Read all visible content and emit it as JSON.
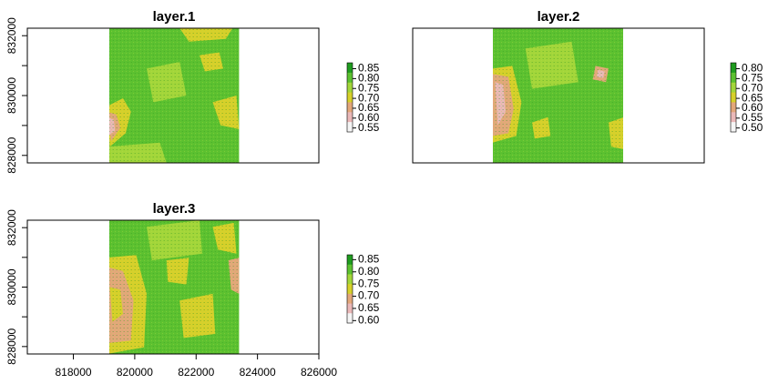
{
  "chart_data": {
    "type": "heatmap",
    "x_ticks": [
      818000,
      820000,
      822000,
      824000,
      826000
    ],
    "y_ticks": [
      828000,
      830000,
      832000
    ],
    "xlim": [
      816500,
      826000
    ],
    "ylim": [
      827750,
      832250
    ],
    "raster_extent": {
      "x": [
        819100,
        823400
      ],
      "y": [
        827750,
        832250
      ]
    },
    "colors": {
      "low": "#f5f5f5",
      "pink": "#eab8b8",
      "tan": "#e3a77a",
      "yellow": "#d7d02a",
      "light_green": "#a3d63a",
      "green": "#5cc130",
      "dark_green": "#1f9c1f",
      "axis": "#000000"
    },
    "panels": [
      {
        "title": "layer.1",
        "show_x_axis": false,
        "legend_ticks": [
          "0.85",
          "0.80",
          "0.75",
          "0.70",
          "0.65",
          "0.60",
          "0.55"
        ],
        "legend_range": [
          0.53,
          0.88
        ]
      },
      {
        "title": "layer.2",
        "show_x_axis": false,
        "legend_ticks": [
          "0.80",
          "0.75",
          "0.70",
          "0.65",
          "0.60",
          "0.55",
          "0.50"
        ],
        "legend_range": [
          0.48,
          0.83
        ]
      },
      {
        "title": "layer.3",
        "show_x_axis": true,
        "legend_ticks": [
          "0.85",
          "0.80",
          "0.75",
          "0.70",
          "0.65",
          "0.60"
        ],
        "legend_range": [
          0.59,
          0.87
        ]
      }
    ]
  }
}
